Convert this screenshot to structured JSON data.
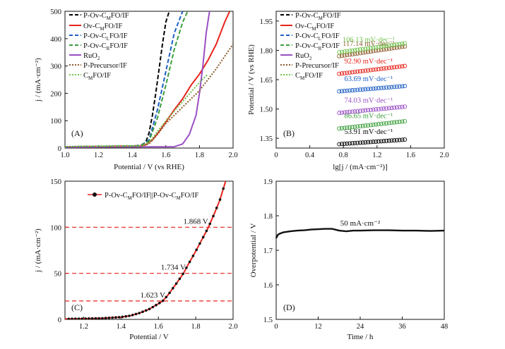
{
  "chart_data": [
    {
      "type": "line",
      "panel_label": "(A)",
      "xlabel": "Potential / V (vs RHE)",
      "ylabel": "j / (mA·cm⁻²)",
      "xlim": [
        1.0,
        2.0
      ],
      "ylim": [
        0,
        500
      ],
      "xticks": [
        "1.0",
        "1.2",
        "1.4",
        "1.6",
        "1.8",
        "2.0"
      ],
      "yticks": [
        "0",
        "100",
        "200",
        "300",
        "400",
        "500"
      ],
      "grid": false,
      "legend_position": "top-left",
      "series": [
        {
          "name": "P-Ov-CMFO/IF",
          "color": "#000000",
          "style": "dash",
          "x": [
            1.0,
            1.4,
            1.45,
            1.48,
            1.5,
            1.52,
            1.54,
            1.56,
            1.58,
            1.6,
            1.62
          ],
          "y": [
            5,
            7,
            10,
            20,
            55,
            120,
            200,
            290,
            380,
            460,
            500
          ]
        },
        {
          "name": "Ov-CMFO/IF",
          "color": "#e8231b",
          "style": "solid",
          "x": [
            1.0,
            1.45,
            1.48,
            1.52,
            1.56,
            1.6,
            1.65,
            1.7,
            1.75,
            1.8,
            1.85,
            1.9,
            1.95,
            1.98
          ],
          "y": [
            5,
            8,
            12,
            30,
            60,
            95,
            140,
            180,
            230,
            270,
            320,
            380,
            460,
            500
          ]
        },
        {
          "name": "P-Ov-CLFO/IF",
          "color": "#1e5fc4",
          "style": "dash",
          "x": [
            1.0,
            1.45,
            1.5,
            1.55,
            1.6,
            1.65,
            1.7
          ],
          "y": [
            5,
            8,
            30,
            140,
            280,
            420,
            500
          ]
        },
        {
          "name": "P-Ov-CRFO/IF",
          "color": "#3a9e3a",
          "style": "dash",
          "x": [
            1.0,
            1.45,
            1.5,
            1.55,
            1.6,
            1.65,
            1.7,
            1.73
          ],
          "y": [
            5,
            8,
            25,
            110,
            230,
            360,
            460,
            500
          ]
        },
        {
          "name": "RuO2",
          "color": "#9a4fc4",
          "style": "solid",
          "x": [
            1.0,
            1.65,
            1.7,
            1.74,
            1.78,
            1.8,
            1.82,
            1.84,
            1.86
          ],
          "y": [
            3,
            5,
            15,
            50,
            120,
            200,
            300,
            420,
            500
          ]
        },
        {
          "name": "P-Precursor/IF",
          "color": "#8b5a2b",
          "style": "dot",
          "x": [
            1.0,
            1.45,
            1.5,
            1.55,
            1.6,
            1.7,
            1.8,
            1.9,
            2.0
          ],
          "y": [
            4,
            6,
            15,
            50,
            90,
            150,
            210,
            290,
            380
          ]
        },
        {
          "name": "CMFO/IF",
          "color": "#6fc24a",
          "style": "dot",
          "x": [
            1.0,
            1.45,
            1.5,
            1.55,
            1.6,
            1.7,
            1.8,
            1.85
          ],
          "y": [
            5,
            8,
            20,
            60,
            100,
            170,
            240,
            270
          ]
        }
      ]
    },
    {
      "type": "scatter",
      "panel_label": "(B)",
      "xlabel": "lg[j / (mA·cm⁻²)]",
      "ylabel": "Potential / V (vs RHE)",
      "xlim": [
        0,
        2.0
      ],
      "ylim": [
        1.3,
        2.0
      ],
      "xticks": [
        "0",
        "0.4",
        "0.8",
        "1.2",
        "1.6",
        "2.0"
      ],
      "yticks": [
        "1.35",
        "1.50",
        "1.65",
        "1.80",
        "1.95"
      ],
      "grid": false,
      "legend_position": "top-left",
      "series": [
        {
          "name": "P-Ov-CMFO/IF",
          "color": "#000000",
          "tafel": "53.91 mV·dec⁻¹",
          "x0": 0.75,
          "y0": 1.32,
          "slope_v": 0.0539
        },
        {
          "name": "Ov-CMFO/IF",
          "color": "#e8231b",
          "tafel": "92.90 mV·dec⁻¹",
          "x0": 0.75,
          "y0": 1.68,
          "slope_v": 0.0929
        },
        {
          "name": "P-Ov-CLFO/IF",
          "color": "#1e5fc4",
          "tafel": "63.69 mV·dec⁻¹",
          "x0": 0.75,
          "y0": 1.59,
          "slope_v": 0.0637
        },
        {
          "name": "P-Ov-CRFO/IF",
          "color": "#3a9e3a",
          "tafel": "86.65 mV·dec⁻¹",
          "x0": 0.75,
          "y0": 1.4,
          "slope_v": 0.0867
        },
        {
          "name": "RuO2",
          "color": "#9a4fc4",
          "tafel": "74.03 mV·dec⁻¹",
          "x0": 0.75,
          "y0": 1.48,
          "slope_v": 0.074
        },
        {
          "name": "P-Precursor/IF",
          "color": "#8b5a2b",
          "tafel": "117.14 mV·dec⁻¹",
          "x0": 0.75,
          "y0": 1.77,
          "slope_v": 0.1171
        },
        {
          "name": "CMFO/IF",
          "color": "#6fc24a",
          "tafel": "106.13 mV·dec⁻¹",
          "x0": 0.75,
          "y0": 1.79,
          "slope_v": 0.1061
        }
      ]
    },
    {
      "type": "line",
      "panel_label": "(C)",
      "xlabel": "Potential / V",
      "ylabel": "j / (mA·cm⁻²)",
      "xlim": [
        1.1,
        2.0
      ],
      "ylim": [
        0,
        150
      ],
      "xticks": [
        "1.2",
        "1.4",
        "1.6",
        "1.8",
        "2.0"
      ],
      "yticks": [
        "0",
        "50",
        "100",
        "150"
      ],
      "grid": false,
      "legend_position": "top-left",
      "legend": "P-Ov-CMFO/IF||P-Ov-CMFO/IF",
      "reference_lines": [
        {
          "y": 100,
          "label": "1.868 V"
        },
        {
          "y": 50,
          "label": "1.734 V"
        },
        {
          "y": 20,
          "label": "1.623 V"
        }
      ],
      "series": [
        {
          "name": "P-Ov-CMFO/IF||P-Ov-CMFO/IF",
          "color": "#e8231b",
          "marker_color": "#111111",
          "x": [
            1.1,
            1.2,
            1.3,
            1.4,
            1.45,
            1.5,
            1.55,
            1.6,
            1.623,
            1.65,
            1.7,
            1.734,
            1.75,
            1.8,
            1.85,
            1.868,
            1.9,
            1.93,
            1.96
          ],
          "y": [
            0.5,
            0.8,
            1.2,
            2.5,
            4,
            7,
            11,
            17,
            20,
            26,
            40,
            50,
            56,
            74,
            93,
            100,
            115,
            130,
            150
          ]
        }
      ]
    },
    {
      "type": "line",
      "panel_label": "(D)",
      "xlabel": "Time / h",
      "ylabel": "Overpotential / V",
      "xlim": [
        0,
        48
      ],
      "ylim": [
        1.5,
        1.9
      ],
      "xticks": [
        "0",
        "12",
        "24",
        "36",
        "48"
      ],
      "yticks": [
        "1.5",
        "1.6",
        "1.7",
        "1.8",
        "1.9"
      ],
      "grid": false,
      "annotation": "50 mA·cm⁻²",
      "series": [
        {
          "name": "",
          "color": "#111111",
          "x": [
            0,
            0.5,
            1,
            2,
            4,
            6,
            8,
            10,
            12,
            14,
            16,
            18,
            20,
            22,
            24,
            28,
            32,
            36,
            40,
            44,
            48
          ],
          "y": [
            1.735,
            1.745,
            1.748,
            1.752,
            1.755,
            1.757,
            1.758,
            1.76,
            1.761,
            1.762,
            1.762,
            1.757,
            1.755,
            1.757,
            1.757,
            1.758,
            1.758,
            1.757,
            1.757,
            1.756,
            1.757
          ]
        }
      ]
    }
  ],
  "legend_text": {
    "a1": "P-Ov-C",
    "a1s": "M",
    "a1e": "FO/IF",
    "a2": "Ov-C",
    "a2s": "M",
    "a2e": "FO/IF",
    "a3": "P-Ov-C",
    "a3s": "L",
    "a3e": "FO/IF",
    "a4": "P-Ov-C",
    "a4s": "R",
    "a4e": "FO/IF",
    "a5": "RuO",
    "a5s": "2",
    "a6": "P-Precursor/IF",
    "a7": "C",
    "a7s": "M",
    "a7e": "FO/IF",
    "c1": "P-Ov-C",
    "c1s": "M",
    "c1e": "FO/IF||P-Ov-C",
    "c1s2": "M",
    "c1e2": "FO/IF"
  }
}
